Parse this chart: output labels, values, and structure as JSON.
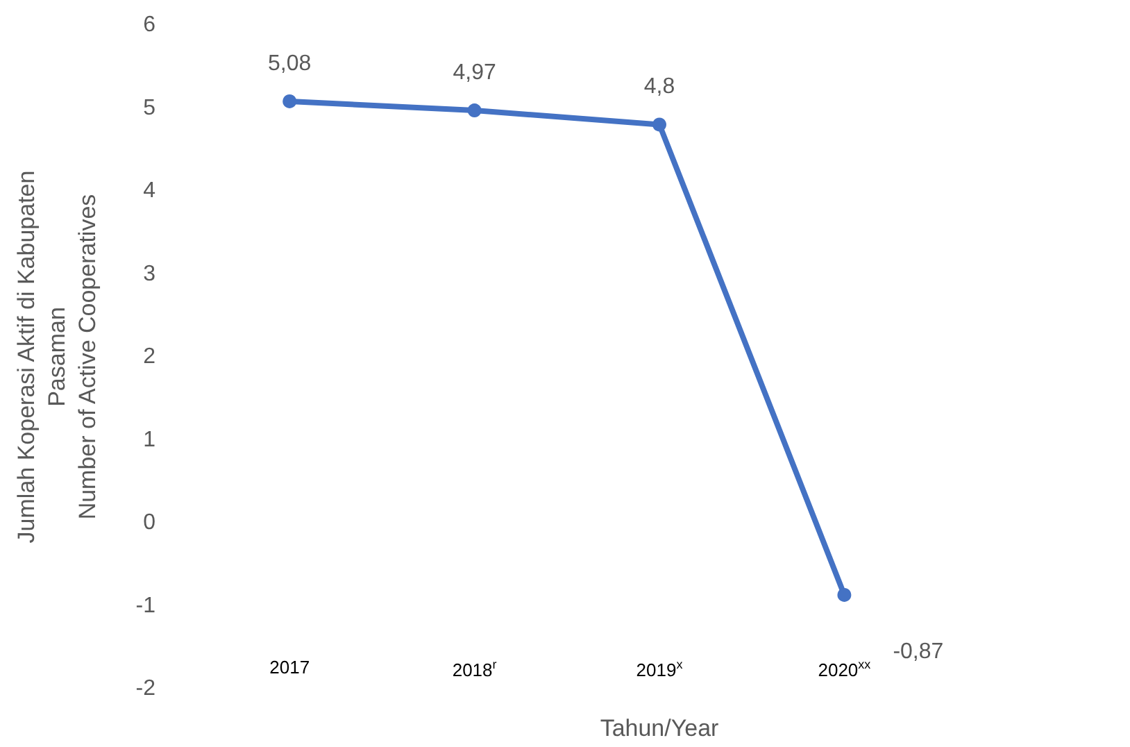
{
  "chart_data": {
    "type": "line",
    "xlabel": "Tahun/Year",
    "ylabel": "Jumlah Koperasi Aktif di Kabupaten\nPasaman\nNumber of Active Cooperatives",
    "categories": [
      "2017",
      "2018$^{r}$",
      "2019$^{x}$",
      "2020$^{xx}$",
      null
    ],
    "series": [
      {
        "color": "#4472c4",
        "values": [
          5.08,
          4.97,
          4.8,
          -0.87,
          null
        ],
        "value_labels": [
          "5,08",
          "4,97",
          "4,8",
          "-0,87",
          null
        ]
      }
    ],
    "ylim": [
      -2,
      6
    ],
    "yticks": [
      -2,
      -1,
      0,
      1,
      2,
      3,
      4,
      5,
      6
    ],
    "marker": "circle",
    "line_style": "solid"
  }
}
